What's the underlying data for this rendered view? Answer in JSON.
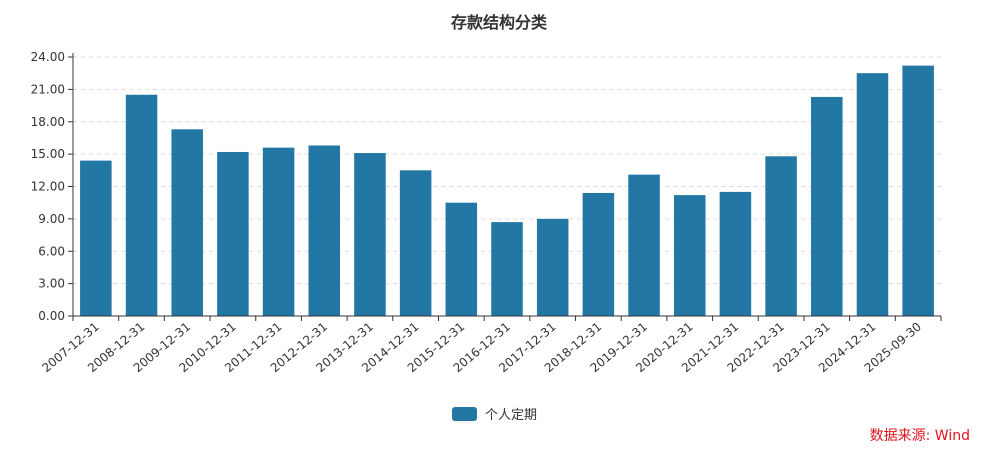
{
  "chart_data": {
    "type": "bar",
    "title": "存款结构分类",
    "categories": [
      "2007-12-31",
      "2008-12-31",
      "2009-12-31",
      "2010-12-31",
      "2011-12-31",
      "2012-12-31",
      "2013-12-31",
      "2014-12-31",
      "2015-12-31",
      "2016-12-31",
      "2017-12-31",
      "2018-12-31",
      "2019-12-31",
      "2020-12-31",
      "2021-12-31",
      "2022-12-31",
      "2023-12-31",
      "2024-12-31",
      "2025-09-30"
    ],
    "series": [
      {
        "name": "个人定期",
        "color": "#2277a4",
        "values": [
          14.4,
          20.5,
          17.3,
          15.2,
          15.6,
          15.8,
          15.1,
          13.5,
          10.5,
          8.7,
          9.0,
          11.4,
          13.1,
          11.2,
          11.5,
          14.8,
          20.3,
          22.5,
          23.2
        ]
      }
    ],
    "yticks": [
      "0.00",
      "3.00",
      "6.00",
      "9.00",
      "12.00",
      "15.00",
      "18.00",
      "21.00",
      "24.00"
    ],
    "ylim": [
      0,
      24
    ],
    "grid": true,
    "legend_position": "bottom-center"
  },
  "source_note": "数据来源: Wind"
}
